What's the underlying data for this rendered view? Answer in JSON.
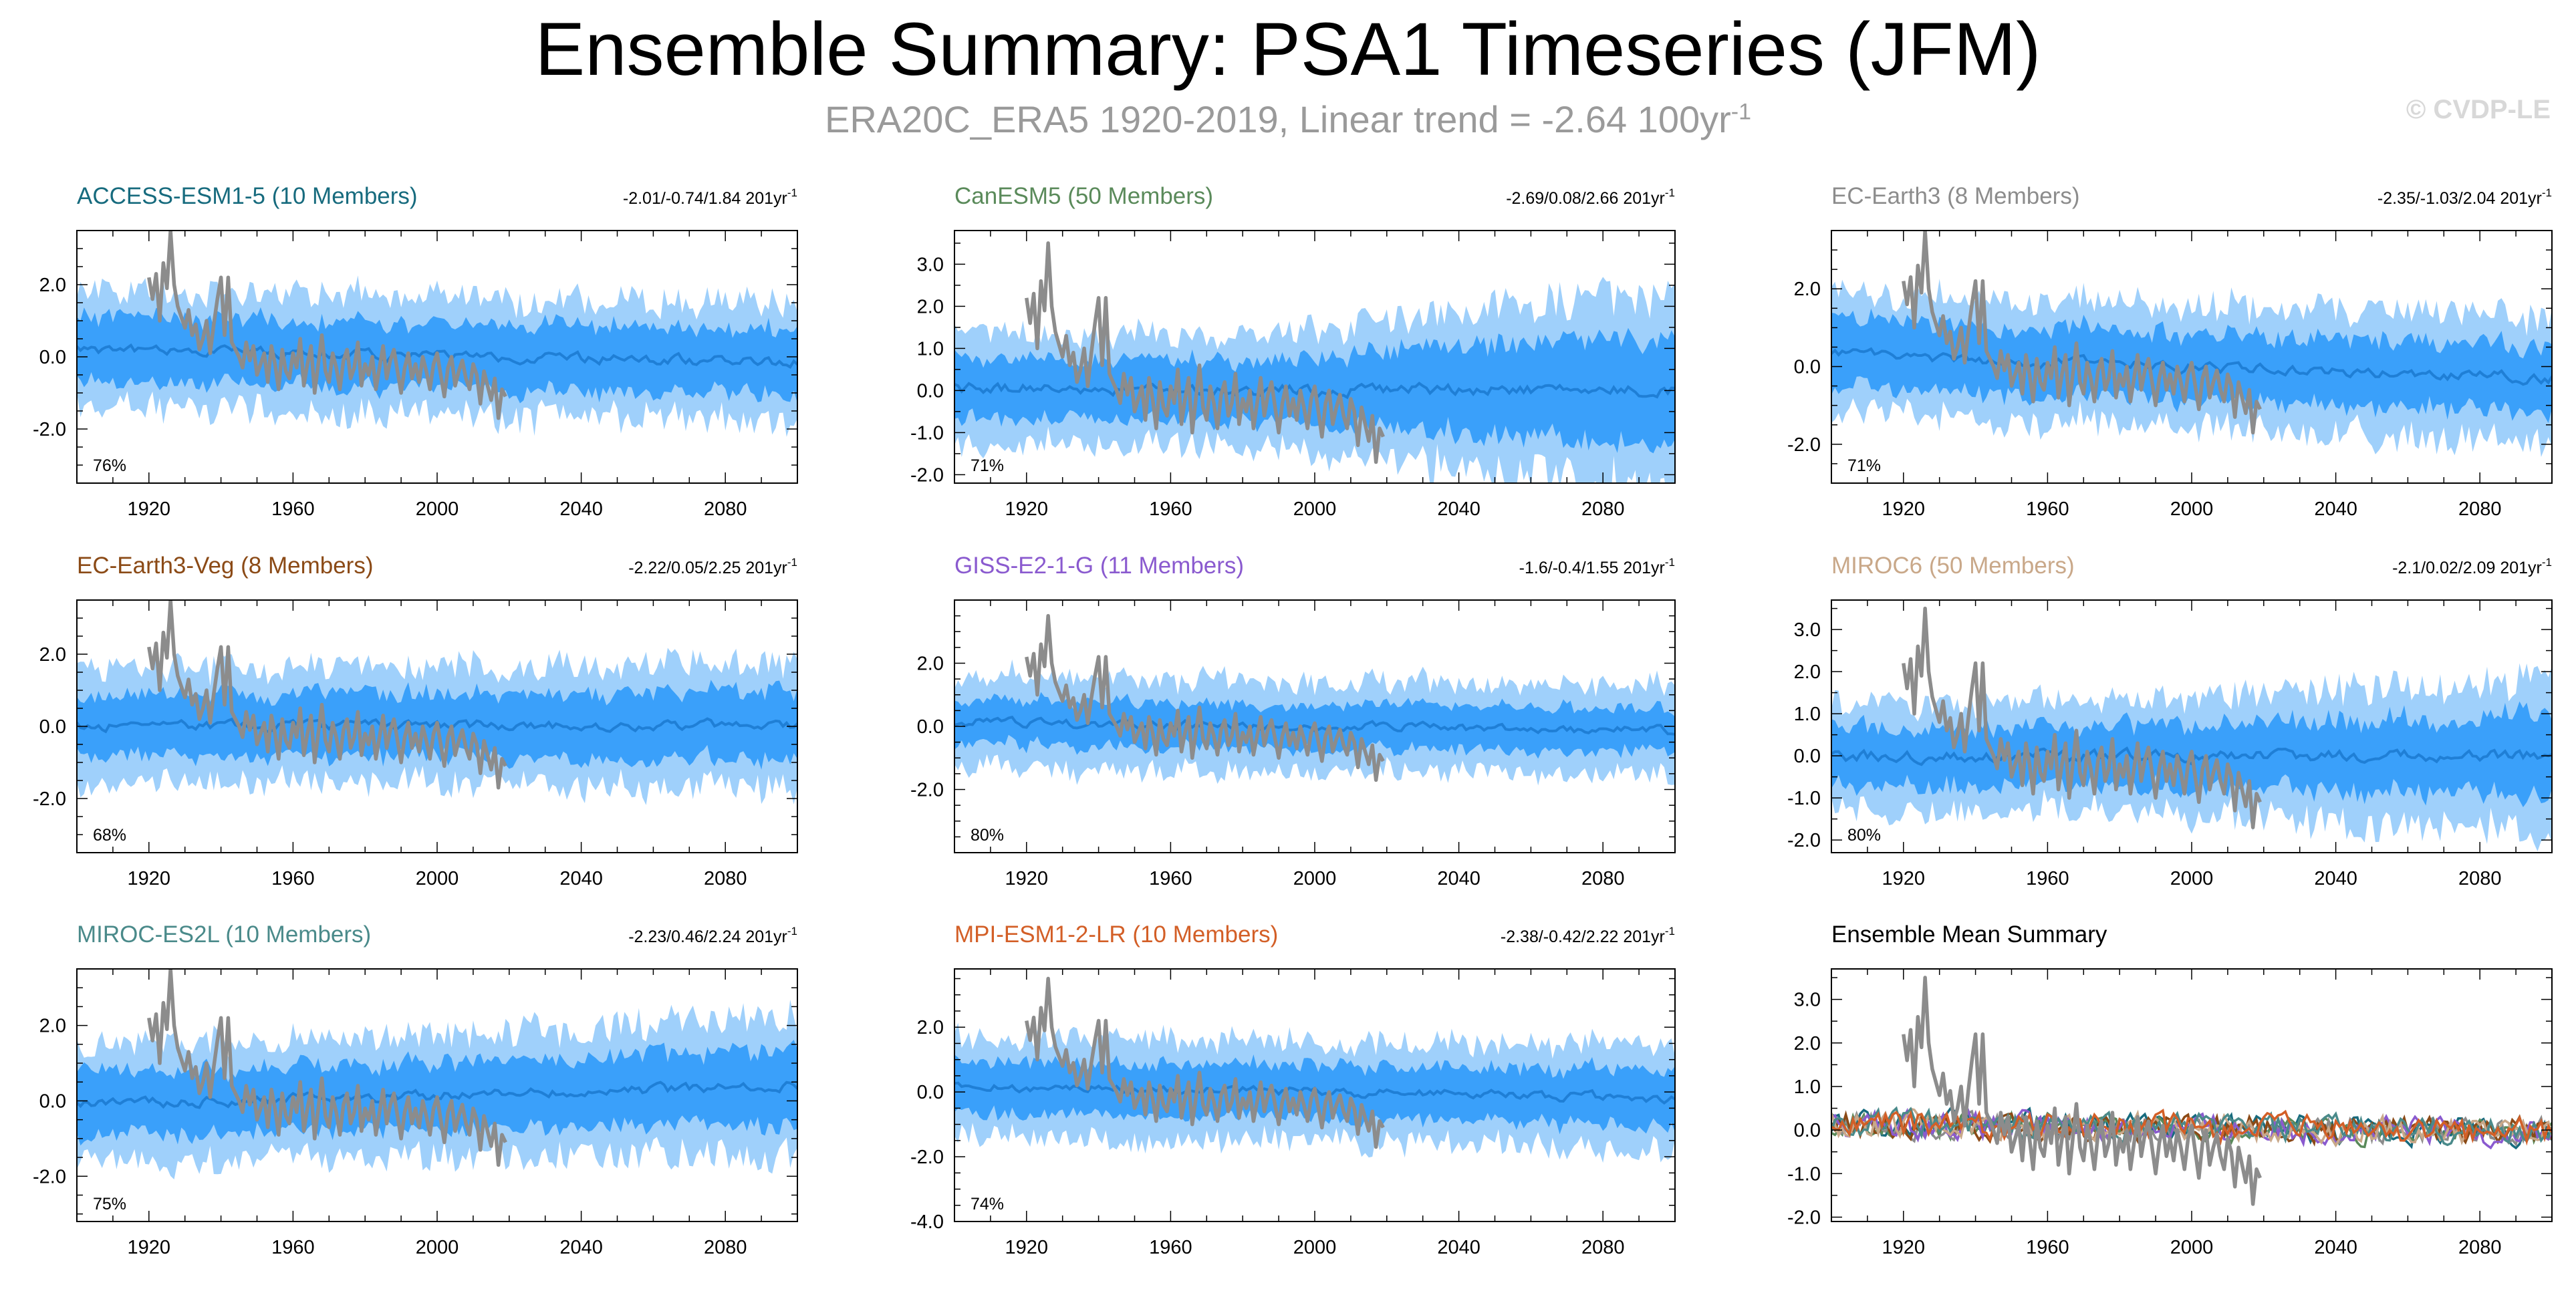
{
  "title": "Ensemble Summary: PSA1 Timeseries (JFM)",
  "subtitle_main": "ERA20C_ERA5 1920-2019, Linear trend = -2.64 100yr",
  "subtitle_sup": "-1",
  "copyright": "© CVDP-LE",
  "colors": {
    "inner_band": "#3aa0fa",
    "outer_band": "#9fd0fb",
    "ens_mean": "#1f7fd6",
    "obs": "#8c8c8c"
  },
  "chart_data": [
    {
      "type": "line",
      "name": "ACCESS-ESM1-5",
      "title": "ACCESS-ESM1-5 (10 Members)",
      "title_color": "#176b7e",
      "trend_text": "-2.01/-0.74/1.84 201yr",
      "trend_sup": "-1",
      "percent_label": "76%",
      "ylim": [
        -3.5,
        3.5
      ],
      "yticks": [
        -2.0,
        0.0,
        2.0
      ],
      "ytick_labels": [
        "-2.0",
        "0.0",
        "2.0"
      ],
      "xlim": [
        1900,
        2100
      ],
      "xticks": [
        1920,
        1960,
        2000,
        2040,
        2080
      ],
      "xtick_labels": [
        "1920",
        "1960",
        "2000",
        "2040",
        "2080"
      ],
      "band_seed": 11,
      "mean_level": 0.2,
      "mean_trend": -0.35,
      "inner_width": 0.9,
      "outer_width": 1.45,
      "spread_growth": 0.0
    },
    {
      "type": "line",
      "name": "CanESM5",
      "title": "CanESM5 (50 Members)",
      "title_color": "#5a8a5a",
      "trend_text": "-2.69/0.08/2.66 201yr",
      "trend_sup": "-1",
      "percent_label": "71%",
      "ylim": [
        -2.2,
        3.8
      ],
      "yticks": [
        -2.0,
        -1.0,
        0.0,
        1.0,
        2.0,
        3.0
      ],
      "ytick_labels": [
        "-2.0",
        "-1.0",
        "0.0",
        "1.0",
        "2.0",
        "3.0"
      ],
      "xlim": [
        1900,
        2100
      ],
      "xticks": [
        1920,
        1960,
        2000,
        2040,
        2080
      ],
      "xtick_labels": [
        "1920",
        "1960",
        "2000",
        "2040",
        "2080"
      ],
      "band_seed": 23,
      "mean_level": 0.05,
      "mean_trend": -0.05,
      "inner_width": 0.7,
      "outer_width": 1.15,
      "spread_growth": 0.9
    },
    {
      "type": "line",
      "name": "EC-Earth3",
      "title": "EC-Earth3 (8 Members)",
      "title_color": "#8c8c8c",
      "trend_text": "-2.35/-1.03/2.04 201yr",
      "trend_sup": "-1",
      "percent_label": "71%",
      "ylim": [
        -3.0,
        3.5
      ],
      "yticks": [
        -2.0,
        0.0,
        2.0
      ],
      "ytick_labels": [
        "-2.0",
        "0.0",
        "2.0"
      ],
      "xlim": [
        1900,
        2100
      ],
      "xticks": [
        1920,
        1960,
        2000,
        2040,
        2080
      ],
      "xtick_labels": [
        "1920",
        "1960",
        "2000",
        "2040",
        "2080"
      ],
      "band_seed": 37,
      "mean_level": 0.3,
      "mean_trend": -0.6,
      "inner_width": 0.85,
      "outer_width": 1.4,
      "spread_growth": 0.0
    },
    {
      "type": "line",
      "name": "EC-Earth3-Veg",
      "title": "EC-Earth3-Veg (8 Members)",
      "title_color": "#8b4a16",
      "trend_text": "-2.22/0.05/2.25 201yr",
      "trend_sup": "-1",
      "percent_label": "68%",
      "ylim": [
        -3.5,
        3.5
      ],
      "yticks": [
        -2.0,
        0.0,
        2.0
      ],
      "ytick_labels": [
        "-2.0",
        "0.0",
        "2.0"
      ],
      "xlim": [
        1900,
        2100
      ],
      "xticks": [
        1920,
        1960,
        2000,
        2040,
        2080
      ],
      "xtick_labels": [
        "1920",
        "1960",
        "2000",
        "2040",
        "2080"
      ],
      "band_seed": 41,
      "mean_level": 0.0,
      "mean_trend": 0.05,
      "inner_width": 0.85,
      "outer_width": 1.4,
      "spread_growth": 0.1
    },
    {
      "type": "line",
      "name": "GISS-E2-1-G",
      "title": "GISS-E2-1-G (11 Members)",
      "title_color": "#8a5acf",
      "trend_text": "-1.6/-0.4/1.55 201yr",
      "trend_sup": "-1",
      "percent_label": "80%",
      "ylim": [
        -4.0,
        4.0
      ],
      "yticks": [
        -2.0,
        0.0,
        2.0
      ],
      "ytick_labels": [
        "-2.0",
        "0.0",
        "2.0"
      ],
      "xlim": [
        1900,
        2100
      ],
      "xticks": [
        1920,
        1960,
        2000,
        2040,
        2080
      ],
      "xtick_labels": [
        "1920",
        "1960",
        "2000",
        "2040",
        "2080"
      ],
      "band_seed": 53,
      "mean_level": 0.15,
      "mean_trend": -0.3,
      "inner_width": 0.7,
      "outer_width": 1.25,
      "spread_growth": 0.0
    },
    {
      "type": "line",
      "name": "MIROC6",
      "title": "MIROC6 (50 Members)",
      "title_color": "#c9a889",
      "trend_text": "-2.1/0.02/2.09 201yr",
      "trend_sup": "-1",
      "percent_label": "80%",
      "ylim": [
        -2.3,
        3.7
      ],
      "yticks": [
        -2.0,
        -1.0,
        0.0,
        1.0,
        2.0,
        3.0
      ],
      "ytick_labels": [
        "-2.0",
        "-1.0",
        "0.0",
        "1.0",
        "2.0",
        "3.0"
      ],
      "xlim": [
        1900,
        2100
      ],
      "xticks": [
        1920,
        1960,
        2000,
        2040,
        2080
      ],
      "xtick_labels": [
        "1920",
        "1960",
        "2000",
        "2040",
        "2080"
      ],
      "band_seed": 67,
      "mean_level": 0.0,
      "mean_trend": 0.0,
      "inner_width": 0.7,
      "outer_width": 1.15,
      "spread_growth": 0.4
    },
    {
      "type": "line",
      "name": "MIROC-ES2L",
      "title": "MIROC-ES2L (10 Members)",
      "title_color": "#4a8a8a",
      "trend_text": "-2.23/0.46/2.24 201yr",
      "trend_sup": "-1",
      "percent_label": "75%",
      "ylim": [
        -3.2,
        3.5
      ],
      "yticks": [
        -2.0,
        0.0,
        2.0
      ],
      "ytick_labels": [
        "-2.0",
        "0.0",
        "2.0"
      ],
      "xlim": [
        1900,
        2100
      ],
      "xticks": [
        1920,
        1960,
        2000,
        2040,
        2080
      ],
      "xtick_labels": [
        "1920",
        "1960",
        "2000",
        "2040",
        "2080"
      ],
      "band_seed": 79,
      "mean_level": -0.1,
      "mean_trend": 0.5,
      "inner_width": 0.85,
      "outer_width": 1.4,
      "spread_growth": 0.15
    },
    {
      "type": "line",
      "name": "MPI-ESM1-2-LR",
      "title": "MPI-ESM1-2-LR (10 Members)",
      "title_color": "#d35f27",
      "trend_text": "-2.38/-0.42/2.22 201yr",
      "trend_sup": "-1",
      "percent_label": "74%",
      "ylim": [
        -4.0,
        3.8
      ],
      "yticks": [
        -4.0,
        -2.0,
        0.0,
        2.0
      ],
      "ytick_labels": [
        "-4.0",
        "-2.0",
        "0.0",
        "2.0"
      ],
      "xlim": [
        1900,
        2100
      ],
      "xticks": [
        1920,
        1960,
        2000,
        2040,
        2080
      ],
      "xtick_labels": [
        "1920",
        "1960",
        "2000",
        "2040",
        "2080"
      ],
      "band_seed": 97,
      "mean_level": 0.2,
      "mean_trend": -0.4,
      "inner_width": 0.8,
      "outer_width": 1.35,
      "spread_growth": 0.05
    },
    {
      "type": "line",
      "name": "Ensemble Mean Summary",
      "title": "Ensemble Mean Summary",
      "title_color": "#000000",
      "trend_text": "",
      "trend_sup": "",
      "percent_label": "",
      "ylim": [
        -2.1,
        3.7
      ],
      "yticks": [
        -2.0,
        -1.0,
        0.0,
        1.0,
        2.0,
        3.0
      ],
      "ytick_labels": [
        "-2.0",
        "-1.0",
        "0.0",
        "1.0",
        "2.0",
        "3.0"
      ],
      "xlim": [
        1900,
        2100
      ],
      "xticks": [
        1920,
        1960,
        2000,
        2040,
        2080
      ],
      "xtick_labels": [
        "1920",
        "1960",
        "2000",
        "2040",
        "2080"
      ],
      "summary": true,
      "series_colors": [
        "#176b7e",
        "#5a8a5a",
        "#8c8c8c",
        "#8b4a16",
        "#8a5acf",
        "#c9a889",
        "#4a8a8a",
        "#d35f27"
      ]
    }
  ],
  "observations": {
    "name": "ERA20C_ERA5",
    "years": [
      1920,
      1921,
      1922,
      1923,
      1924,
      1925,
      1926,
      1927,
      1928,
      1929,
      1930,
      1931,
      1932,
      1933,
      1934,
      1935,
      1936,
      1937,
      1938,
      1939,
      1940,
      1941,
      1942,
      1943,
      1944,
      1945,
      1946,
      1947,
      1948,
      1949,
      1950,
      1951,
      1952,
      1953,
      1954,
      1955,
      1956,
      1957,
      1958,
      1959,
      1960,
      1961,
      1962,
      1963,
      1964,
      1965,
      1966,
      1967,
      1968,
      1969,
      1970,
      1971,
      1972,
      1973,
      1974,
      1975,
      1976,
      1977,
      1978,
      1979,
      1980,
      1981,
      1982,
      1983,
      1984,
      1985,
      1986,
      1987,
      1988,
      1989,
      1990,
      1991,
      1992,
      1993,
      1994,
      1995,
      1996,
      1997,
      1998,
      1999,
      2000,
      2001,
      2002,
      2003,
      2004,
      2005,
      2006,
      2007,
      2008,
      2009,
      2010,
      2011,
      2012,
      2013,
      2014,
      2015,
      2016,
      2017,
      2018,
      2019
    ],
    "values": [
      2.2,
      1.6,
      2.3,
      1.0,
      2.6,
      1.9,
      3.5,
      2.0,
      1.4,
      1.1,
      0.8,
      1.3,
      0.6,
      0.9,
      0.2,
      0.5,
      1.0,
      0.1,
      0.9,
      1.6,
      2.2,
      0.6,
      2.2,
      0.4,
      0.2,
      0.0,
      -0.3,
      0.4,
      -0.1,
      0.3,
      -0.5,
      -0.2,
      0.1,
      -0.7,
      0.3,
      -0.2,
      -0.9,
      0.2,
      -0.4,
      -0.6,
      0.1,
      -0.3,
      0.5,
      -0.8,
      -0.2,
      0.3,
      -1.0,
      -0.2,
      0.6,
      -0.4,
      -0.7,
      0.1,
      -0.3,
      -0.9,
      -0.1,
      0.2,
      -0.6,
      -0.3,
      0.4,
      -0.8,
      -0.2,
      -0.5,
      0.0,
      -0.9,
      -0.3,
      0.3,
      -0.6,
      -0.1,
      0.2,
      -0.4,
      -1.0,
      -0.3,
      0.1,
      -0.6,
      -0.2,
      -0.7,
      0.0,
      -0.4,
      -0.9,
      -0.2,
      0.1,
      -0.5,
      -1.1,
      -0.3,
      0.0,
      -0.8,
      -0.4,
      -0.1,
      -0.6,
      -0.9,
      -0.2,
      -0.5,
      -1.3,
      -0.4,
      -0.8,
      -1.2,
      -0.6,
      -1.7,
      -0.9,
      -1.1
    ]
  }
}
